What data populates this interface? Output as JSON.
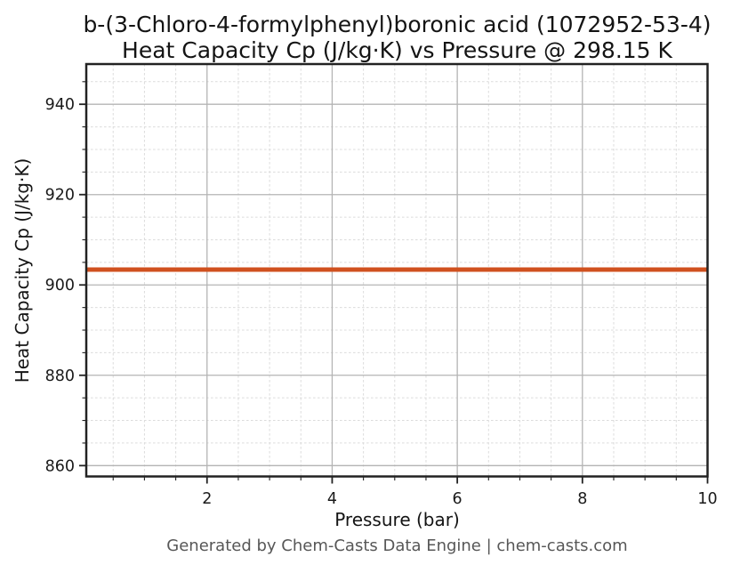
{
  "chart_data": {
    "type": "line",
    "title_lines": [
      "b-(3-Chloro-4-formylphenyl)boronic acid (1072952-53-4)",
      "Heat Capacity Cp (J/kg·K) vs Pressure @ 298.15 K"
    ],
    "xlabel": "Pressure (bar)",
    "ylabel": "Heat Capacity Cp (J/kg·K)",
    "x": [
      0.1,
      1,
      2,
      3,
      4,
      5,
      6,
      7,
      8,
      9,
      10
    ],
    "series": [
      {
        "name": "Heat Capacity Cp",
        "values": [
          903.4,
          903.4,
          903.4,
          903.4,
          903.4,
          903.4,
          903.4,
          903.4,
          903.4,
          903.4,
          903.4
        ]
      }
    ],
    "constant_value": 903.4,
    "xlim": [
      0.07,
      10
    ],
    "ylim": [
      857.6,
      948.9
    ],
    "xticks": [
      2,
      4,
      6,
      8,
      10
    ],
    "yticks": [
      860,
      880,
      900,
      920,
      940
    ],
    "x_minor_step": 0.5,
    "y_minor_step": 5,
    "grid": {
      "major": "solid",
      "minor": "dashed"
    },
    "legend": "none"
  },
  "footer": "Generated by Chem-Casts Data Engine | chem-casts.com",
  "colors": {
    "line": "#d0511f",
    "grid_major": "#b4b4b4",
    "grid_minor": "#dcdcdc",
    "spine": "#222222",
    "tick_text": "#1a1a1a",
    "title_text": "#141414",
    "footer_text": "#575757",
    "background": "#ffffff"
  }
}
